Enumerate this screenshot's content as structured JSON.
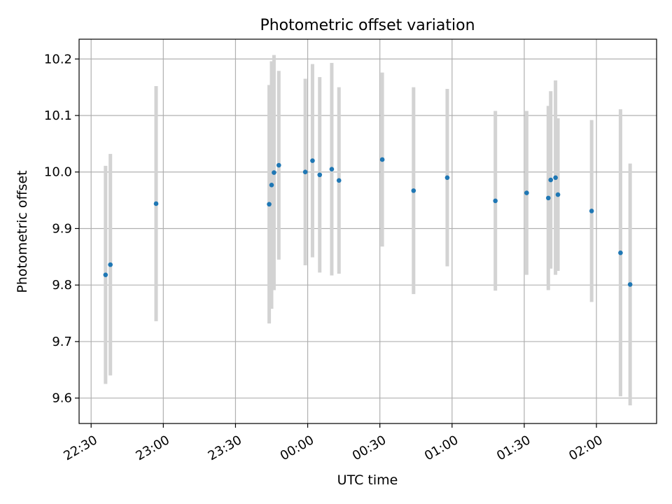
{
  "chart_data": {
    "type": "scatter",
    "title": "Photometric offset variation",
    "xlabel": "UTC time",
    "ylabel": "Photometric offset",
    "grid": true,
    "xlim": [
      "22:25",
      "02:25"
    ],
    "ylim": [
      9.555,
      10.235
    ],
    "x_ticks": [
      {
        "time": "22:30",
        "label": "22:30"
      },
      {
        "time": "23:00",
        "label": "23:00"
      },
      {
        "time": "23:30",
        "label": "23:30"
      },
      {
        "time": "00:00",
        "label": "00:00"
      },
      {
        "time": "00:30",
        "label": "00:30"
      },
      {
        "time": "01:00",
        "label": "01:00"
      },
      {
        "time": "01:30",
        "label": "01:30"
      },
      {
        "time": "02:00",
        "label": "02:00"
      }
    ],
    "y_ticks": [
      {
        "value": 9.6,
        "label": "9.6"
      },
      {
        "value": 9.7,
        "label": "9.7"
      },
      {
        "value": 9.8,
        "label": "9.8"
      },
      {
        "value": 9.9,
        "label": "9.9"
      },
      {
        "value": 10.0,
        "label": "10.0"
      },
      {
        "value": 10.1,
        "label": "10.1"
      },
      {
        "value": 10.2,
        "label": "10.2"
      }
    ],
    "point_color": "#1f77b4",
    "errorbar_color": "#d3d3d3",
    "points": [
      {
        "time": "22:36",
        "y": 9.818,
        "err": 0.193
      },
      {
        "time": "22:38",
        "y": 9.836,
        "err": 0.196
      },
      {
        "time": "22:57",
        "y": 9.944,
        "err": 0.208
      },
      {
        "time": "23:44",
        "y": 9.943,
        "err": 0.211
      },
      {
        "time": "23:45",
        "y": 9.977,
        "err": 0.219
      },
      {
        "time": "23:46",
        "y": 9.999,
        "err": 0.208
      },
      {
        "time": "23:48",
        "y": 10.012,
        "err": 0.167
      },
      {
        "time": "23:59",
        "y": 10.0,
        "err": 0.165
      },
      {
        "time": "00:02",
        "y": 10.02,
        "err": 0.171
      },
      {
        "time": "00:05",
        "y": 9.995,
        "err": 0.173
      },
      {
        "time": "00:10",
        "y": 10.005,
        "err": 0.188
      },
      {
        "time": "00:13",
        "y": 9.985,
        "err": 0.165
      },
      {
        "time": "00:31",
        "y": 10.022,
        "err": 0.154
      },
      {
        "time": "00:44",
        "y": 9.967,
        "err": 0.183
      },
      {
        "time": "00:58",
        "y": 9.99,
        "err": 0.157
      },
      {
        "time": "01:18",
        "y": 9.949,
        "err": 0.159
      },
      {
        "time": "01:31",
        "y": 9.963,
        "err": 0.145
      },
      {
        "time": "01:40",
        "y": 9.954,
        "err": 0.163
      },
      {
        "time": "01:41",
        "y": 9.986,
        "err": 0.157
      },
      {
        "time": "01:43",
        "y": 9.99,
        "err": 0.172
      },
      {
        "time": "01:44",
        "y": 9.96,
        "err": 0.135
      },
      {
        "time": "01:58",
        "y": 9.931,
        "err": 0.161
      },
      {
        "time": "02:10",
        "y": 9.857,
        "err": 0.254
      },
      {
        "time": "02:14",
        "y": 9.801,
        "err": 0.214
      }
    ]
  }
}
